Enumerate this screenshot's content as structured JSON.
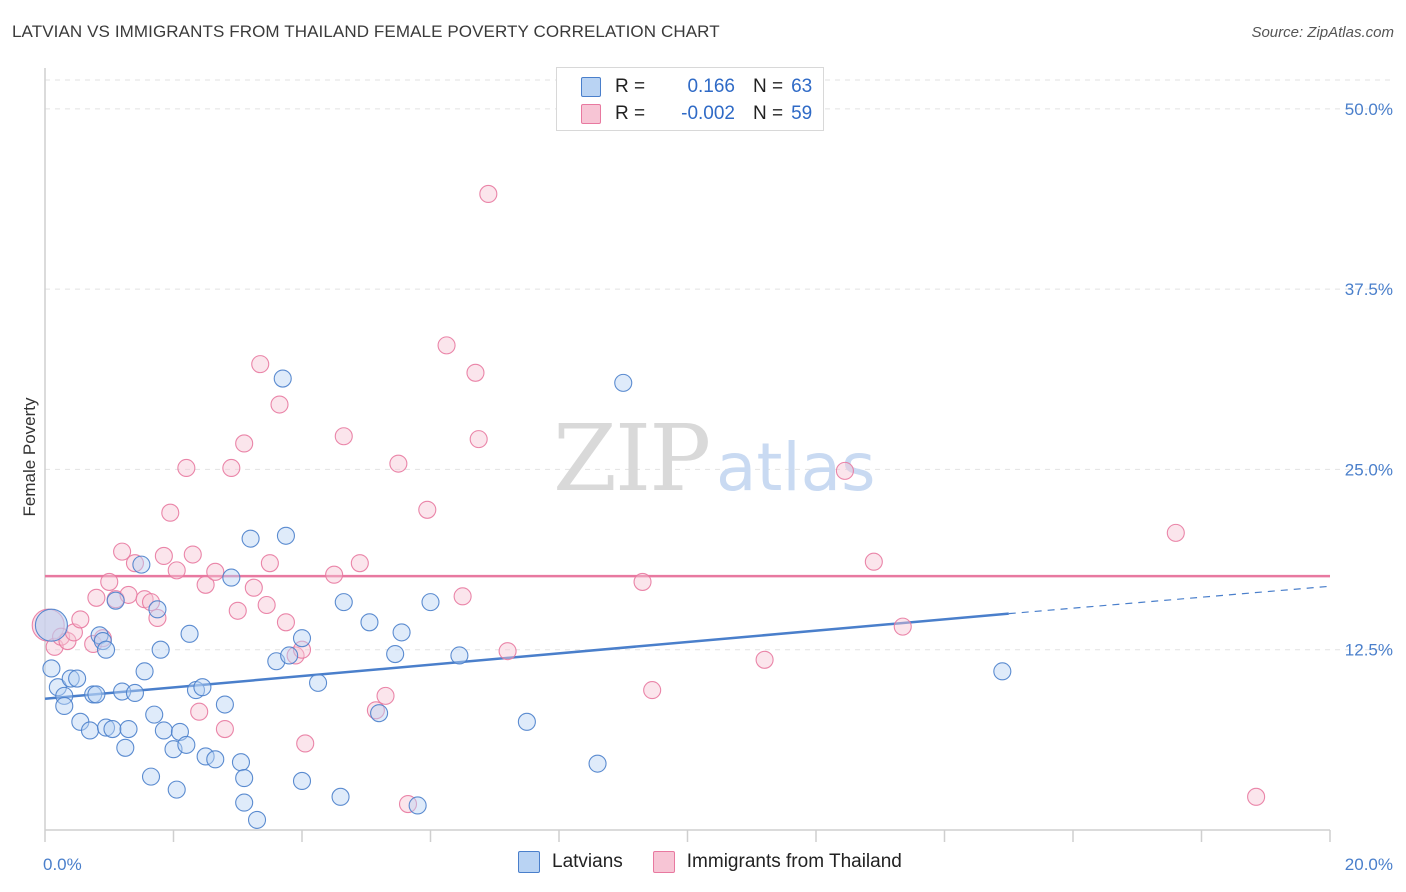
{
  "title": "LATVIAN VS IMMIGRANTS FROM THAILAND FEMALE POVERTY CORRELATION CHART",
  "source": "Source: ZipAtlas.com",
  "watermark": {
    "zip": "ZIP",
    "atlas": "atlas"
  },
  "legend": {
    "r_label": "R =",
    "n_label": "N =",
    "series": [
      {
        "r": "0.166",
        "n": "63"
      },
      {
        "r": "-0.002",
        "n": "59"
      }
    ]
  },
  "bottom_legend": [
    "Latvians",
    "Immigrants from Thailand"
  ],
  "chart_data": {
    "type": "scatter",
    "title": "LATVIAN VS IMMIGRANTS FROM THAILAND FEMALE POVERTY CORRELATION CHART",
    "xlabel": "",
    "ylabel": "Female Poverty",
    "xlim": [
      0,
      20
    ],
    "ylim": [
      0,
      52
    ],
    "x_tick_labels": [
      {
        "value": 0,
        "label": "0.0%"
      },
      {
        "value": 20,
        "label": "20.0%"
      }
    ],
    "y_tick_labels": [
      {
        "value": 12.5,
        "label": "12.5%"
      },
      {
        "value": 25,
        "label": "25.0%"
      },
      {
        "value": 37.5,
        "label": "37.5%"
      },
      {
        "value": 50,
        "label": "50.0%"
      }
    ],
    "colors": {
      "latvians": "#4a7fcb",
      "thailand": "#e879a0",
      "latvians_fill": "#b9d3f3",
      "thailand_fill": "#f7c5d5"
    },
    "series": [
      {
        "name": "Latvians",
        "trend": {
          "x_start": 0,
          "y_start": 9.1,
          "x_solid_end": 15,
          "y_solid_end": 15.0,
          "x_end": 20,
          "y_end": 16.9
        },
        "points": [
          [
            0.1,
            14.2,
            "big"
          ],
          [
            0.1,
            11.2
          ],
          [
            0.2,
            9.9
          ],
          [
            0.3,
            9.3
          ],
          [
            0.3,
            8.6
          ],
          [
            0.4,
            10.5
          ],
          [
            0.5,
            10.5
          ],
          [
            0.55,
            7.5
          ],
          [
            0.7,
            6.9
          ],
          [
            0.75,
            9.4
          ],
          [
            0.8,
            9.4
          ],
          [
            0.85,
            13.5
          ],
          [
            0.9,
            13.1
          ],
          [
            0.95,
            12.5
          ],
          [
            0.95,
            7.1
          ],
          [
            1.05,
            7.0
          ],
          [
            1.1,
            15.9
          ],
          [
            1.2,
            9.6
          ],
          [
            1.25,
            5.7
          ],
          [
            1.3,
            7.0
          ],
          [
            1.4,
            9.5
          ],
          [
            1.5,
            18.4
          ],
          [
            1.55,
            11.0
          ],
          [
            1.65,
            3.7
          ],
          [
            1.7,
            8.0
          ],
          [
            1.75,
            15.3
          ],
          [
            1.8,
            12.5
          ],
          [
            1.85,
            6.9
          ],
          [
            2.0,
            5.6
          ],
          [
            2.05,
            2.8
          ],
          [
            2.1,
            6.8
          ],
          [
            2.2,
            5.9
          ],
          [
            2.25,
            13.6
          ],
          [
            2.35,
            9.7
          ],
          [
            2.45,
            9.9
          ],
          [
            2.5,
            5.1
          ],
          [
            2.65,
            4.9
          ],
          [
            2.8,
            8.7
          ],
          [
            2.9,
            17.5
          ],
          [
            3.05,
            4.7
          ],
          [
            3.1,
            1.9
          ],
          [
            3.1,
            3.6
          ],
          [
            3.2,
            20.2
          ],
          [
            3.3,
            0.7
          ],
          [
            3.6,
            11.7
          ],
          [
            3.7,
            31.3
          ],
          [
            3.75,
            20.4
          ],
          [
            3.8,
            12.1
          ],
          [
            4.0,
            13.3
          ],
          [
            4.0,
            3.4
          ],
          [
            4.25,
            10.2
          ],
          [
            4.6,
            2.3
          ],
          [
            4.65,
            15.8
          ],
          [
            5.05,
            14.4
          ],
          [
            5.2,
            8.1
          ],
          [
            5.45,
            12.2
          ],
          [
            5.55,
            13.7
          ],
          [
            5.8,
            1.7
          ],
          [
            6.0,
            15.8
          ],
          [
            6.45,
            12.1
          ],
          [
            7.5,
            7.5
          ],
          [
            8.6,
            4.6
          ],
          [
            9.0,
            31.0
          ],
          [
            14.9,
            11.0
          ]
        ]
      },
      {
        "name": "Immigrants from Thailand",
        "trend": {
          "x_start": 0,
          "y_start": 17.6,
          "x_end": 20,
          "y_end": 17.6
        },
        "points": [
          [
            0.05,
            14.2,
            "big"
          ],
          [
            0.15,
            12.7
          ],
          [
            0.25,
            13.4
          ],
          [
            0.35,
            13.1
          ],
          [
            0.45,
            13.7
          ],
          [
            0.55,
            14.6
          ],
          [
            0.75,
            12.9
          ],
          [
            0.8,
            16.1
          ],
          [
            0.9,
            13.3
          ],
          [
            1.0,
            17.2
          ],
          [
            1.1,
            16.0
          ],
          [
            1.2,
            19.3
          ],
          [
            1.3,
            16.3
          ],
          [
            1.4,
            18.5
          ],
          [
            1.55,
            16.0
          ],
          [
            1.65,
            15.8
          ],
          [
            1.75,
            14.7
          ],
          [
            1.85,
            19.0
          ],
          [
            1.95,
            22.0
          ],
          [
            2.05,
            18.0
          ],
          [
            2.2,
            25.1
          ],
          [
            2.3,
            19.1
          ],
          [
            2.4,
            8.2
          ],
          [
            2.5,
            17.0
          ],
          [
            2.65,
            17.9
          ],
          [
            2.8,
            7.0
          ],
          [
            2.9,
            25.1
          ],
          [
            3.0,
            15.2
          ],
          [
            3.1,
            26.8
          ],
          [
            3.25,
            16.8
          ],
          [
            3.35,
            32.3
          ],
          [
            3.45,
            15.6
          ],
          [
            3.5,
            18.5
          ],
          [
            3.65,
            29.5
          ],
          [
            3.75,
            14.4
          ],
          [
            3.9,
            12.1
          ],
          [
            4.0,
            12.5
          ],
          [
            4.05,
            6.0
          ],
          [
            4.5,
            17.7
          ],
          [
            4.65,
            27.3
          ],
          [
            4.9,
            18.5
          ],
          [
            5.15,
            8.3
          ],
          [
            5.3,
            9.3
          ],
          [
            5.5,
            25.4
          ],
          [
            5.65,
            1.8
          ],
          [
            5.95,
            22.2
          ],
          [
            6.25,
            33.6
          ],
          [
            6.5,
            16.2
          ],
          [
            6.7,
            31.7
          ],
          [
            6.75,
            27.1
          ],
          [
            6.9,
            44.1
          ],
          [
            7.2,
            12.4
          ],
          [
            9.3,
            17.2
          ],
          [
            9.45,
            9.7
          ],
          [
            11.2,
            11.8
          ],
          [
            12.45,
            24.9
          ],
          [
            12.9,
            18.6
          ],
          [
            13.35,
            14.1
          ],
          [
            17.6,
            20.6
          ],
          [
            18.85,
            2.3
          ]
        ]
      }
    ]
  }
}
